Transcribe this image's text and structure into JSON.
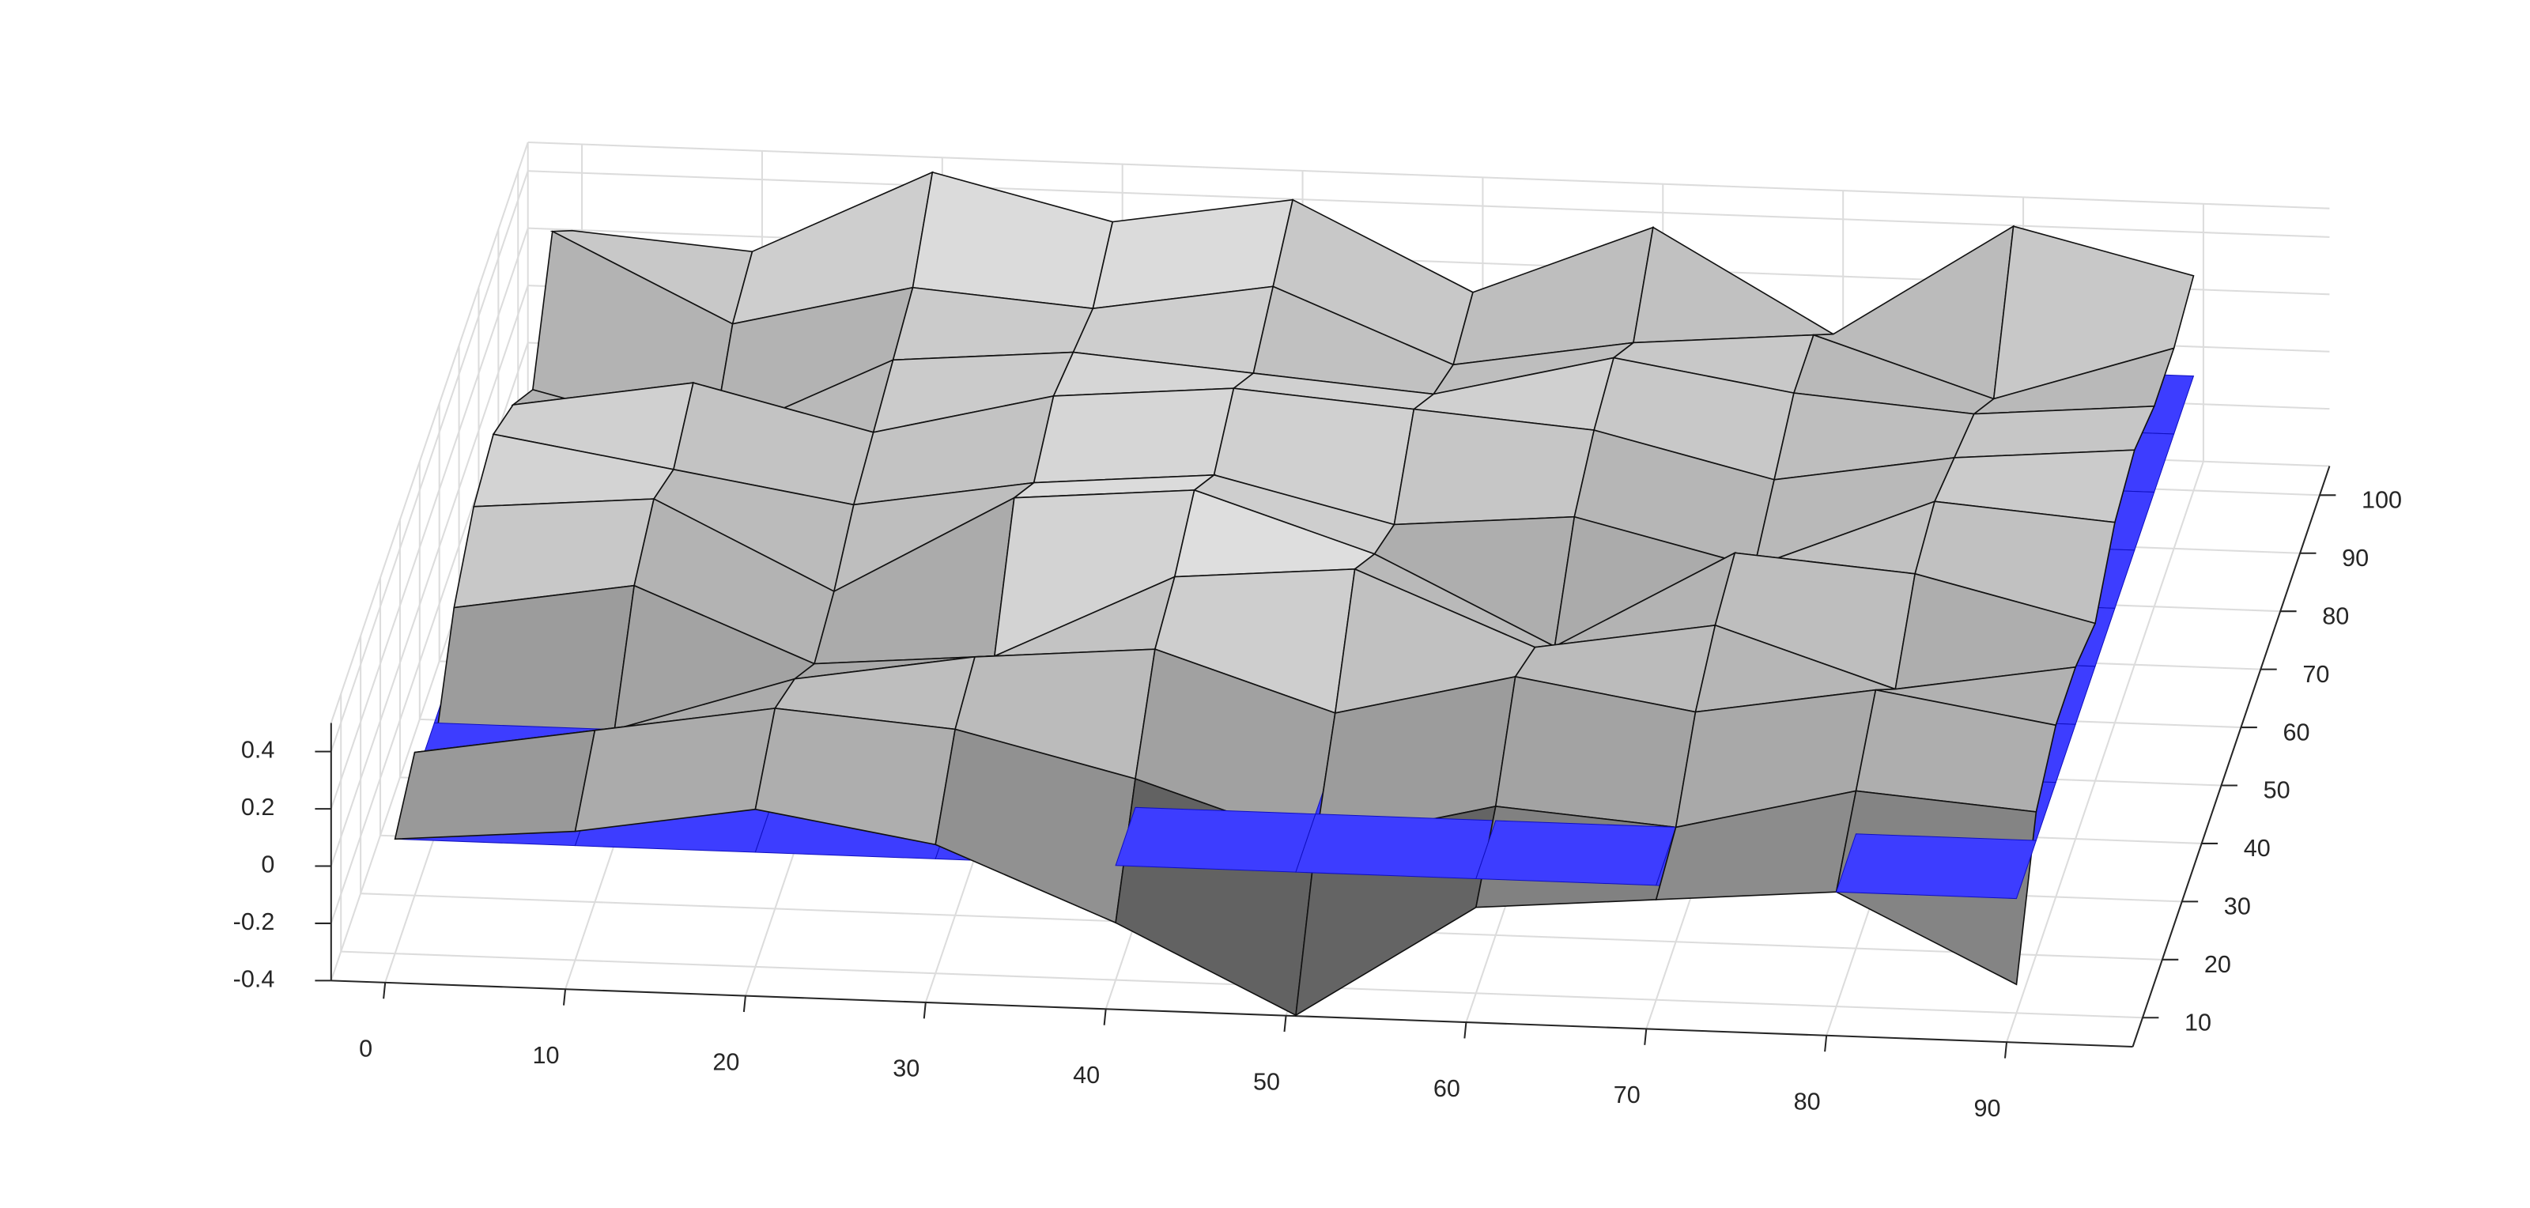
{
  "chart_data": {
    "type": "surface3d",
    "x": [
      0,
      10,
      20,
      30,
      40,
      50,
      60,
      70,
      80,
      90
    ],
    "y": [
      10,
      20,
      30,
      40,
      50,
      60,
      70,
      80,
      90,
      100
    ],
    "z": [
      [
        0.0,
        0.05,
        0.15,
        0.05,
        -0.2,
        -0.5,
        -0.1,
        -0.05,
        0.0,
        -0.3
      ],
      [
        0.1,
        0.2,
        0.3,
        0.25,
        0.1,
        -0.1,
        0.05,
        0.0,
        0.15,
        0.1
      ],
      [
        -0.1,
        0.0,
        0.2,
        0.3,
        0.35,
        0.15,
        0.3,
        0.2,
        0.3,
        0.2
      ],
      [
        0.2,
        0.3,
        0.05,
        0.1,
        0.4,
        0.45,
        0.2,
        0.3,
        0.1,
        0.2
      ],
      [
        0.35,
        0.4,
        0.1,
        0.45,
        0.5,
        0.3,
        0.0,
        0.35,
        0.3,
        0.15
      ],
      [
        0.4,
        0.3,
        0.2,
        0.3,
        0.35,
        0.2,
        0.25,
        0.1,
        0.35,
        0.3
      ],
      [
        0.3,
        0.4,
        0.25,
        0.4,
        0.45,
        0.4,
        0.35,
        0.2,
        0.3,
        0.35
      ],
      [
        0.15,
        0.0,
        0.3,
        0.35,
        0.3,
        0.25,
        0.4,
        0.3,
        0.25,
        0.3
      ],
      [
        0.5,
        0.2,
        0.35,
        0.3,
        0.4,
        0.15,
        0.25,
        0.3,
        0.1,
        0.3
      ],
      [
        0.3,
        0.25,
        0.55,
        0.4,
        0.5,
        0.2,
        0.45,
        0.1,
        0.5,
        0.35
      ]
    ],
    "plane_z": 0,
    "plane_color": "#3d3dff",
    "xlim": [
      -3,
      97
    ],
    "ylim": [
      5,
      105
    ],
    "zlim": [
      -0.4,
      0.5
    ],
    "xticks": [
      0,
      10,
      20,
      30,
      40,
      50,
      60,
      70,
      80,
      90
    ],
    "yticks": [
      10,
      20,
      30,
      40,
      50,
      60,
      70,
      80,
      90,
      100
    ],
    "zticks": [
      -0.4,
      -0.2,
      0,
      0.2,
      0.4
    ],
    "grid": true
  }
}
